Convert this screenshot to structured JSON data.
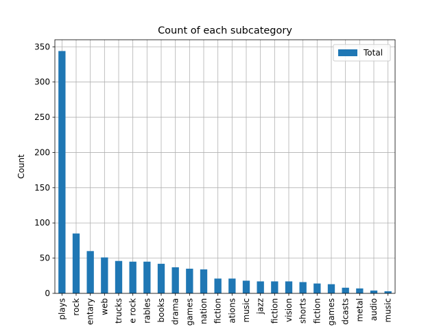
{
  "chart_data": {
    "type": "bar",
    "title": "Count of each subcategory",
    "xlabel": "",
    "ylabel": "Count",
    "ylim": [
      0,
      360
    ],
    "yticks": [
      0,
      50,
      100,
      150,
      200,
      250,
      300,
      350
    ],
    "grid": true,
    "legend_position": "top-right",
    "categories": [
      "plays",
      "rock",
      "entary",
      "web",
      "trucks",
      "e rock",
      "rables",
      "books",
      "drama",
      "games",
      "nation",
      "fiction",
      "ations",
      "music",
      "jazz",
      "fiction",
      "vision",
      "shorts",
      "fiction",
      "games",
      "dcasts",
      "metal",
      "audio",
      "music"
    ],
    "series": [
      {
        "name": "Total",
        "color": "#1f77b4",
        "values": [
          344,
          85,
          60,
          51,
          46,
          45,
          45,
          42,
          37,
          35,
          34,
          21,
          21,
          18,
          17,
          17,
          17,
          16,
          14,
          13,
          8,
          7,
          4,
          3
        ]
      }
    ]
  }
}
